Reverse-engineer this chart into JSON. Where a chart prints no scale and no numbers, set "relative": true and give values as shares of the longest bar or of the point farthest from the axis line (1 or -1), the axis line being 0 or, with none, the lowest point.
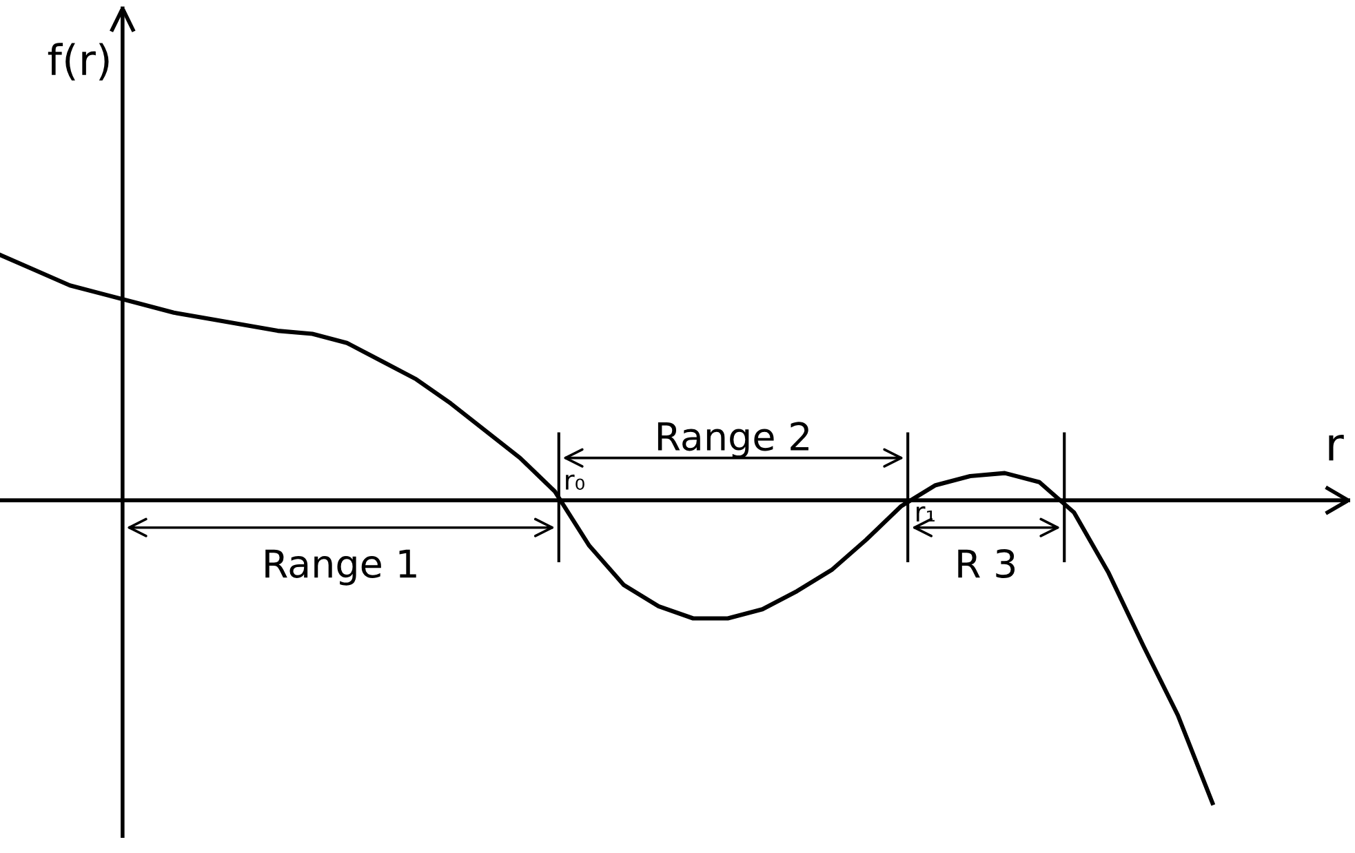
{
  "chart_data": {
    "type": "line",
    "relative": true,
    "xlabel": "r",
    "ylabel": "f(r)",
    "categories": [
      null,
      null,
      null,
      null,
      null,
      null,
      null,
      null,
      null,
      null,
      null,
      null,
      null,
      null,
      null,
      null,
      null,
      null,
      null,
      null,
      null,
      null,
      null,
      null,
      null,
      null,
      null,
      null,
      null,
      null,
      null,
      null,
      null,
      null,
      null,
      null
    ],
    "series": [
      {
        "color": "#000000",
        "values": [
          0.81,
          0.76,
          0.71,
          0.68,
          0.65,
          0.62,
          0.6,
          0.58,
          0.56,
          0.55,
          0.52,
          0.46,
          0.4,
          0.32,
          0.23,
          0.14,
          0.03,
          -0.15,
          -0.28,
          -0.35,
          -0.39,
          -0.39,
          -0.36,
          -0.3,
          -0.23,
          -0.13,
          -0.02,
          0.05,
          0.08,
          0.09,
          0.06,
          -0.04,
          -0.24,
          -0.48,
          -0.71,
          -1
        ]
      }
    ],
    "annotations": [
      "Range 1",
      "Range 2",
      "R 3",
      "r₀",
      "r₁"
    ],
    "legend": false,
    "marker": "none",
    "line_style": "solid"
  }
}
